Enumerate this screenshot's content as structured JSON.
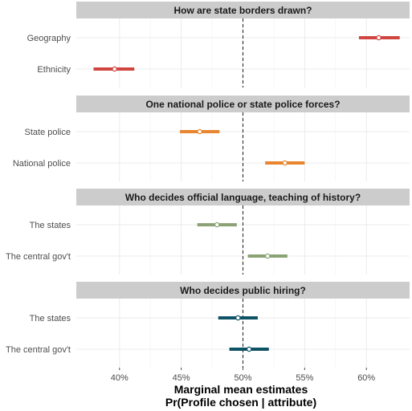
{
  "chart_data": {
    "type": "dot-whisker",
    "xlabel_line1": "Marginal mean estimates",
    "xlabel_line2": "Pr(Profile chosen | attribute)",
    "xlim": [
      0.365,
      0.635
    ],
    "x_ticks": [
      0.4,
      0.45,
      0.5,
      0.55,
      0.6
    ],
    "x_tick_labels": [
      "40%",
      "45%",
      "50%",
      "55%",
      "60%"
    ],
    "reference_line": 0.5,
    "grid": true,
    "panels": [
      {
        "title": "How are state borders drawn?",
        "color": "#d0453f",
        "rows": [
          {
            "label": "Geography",
            "estimate": 0.61,
            "lower": 0.594,
            "upper": 0.627
          },
          {
            "label": "Ethnicity",
            "estimate": 0.396,
            "lower": 0.379,
            "upper": 0.412
          }
        ]
      },
      {
        "title": "One national police or state police forces?",
        "color": "#e8852e",
        "rows": [
          {
            "label": "State police",
            "estimate": 0.465,
            "lower": 0.449,
            "upper": 0.481
          },
          {
            "label": "National police",
            "estimate": 0.534,
            "lower": 0.518,
            "upper": 0.55
          }
        ]
      },
      {
        "title": "Who decides official language, teaching of history?",
        "color": "#8aa274",
        "rows": [
          {
            "label": "The states",
            "estimate": 0.479,
            "lower": 0.463,
            "upper": 0.495
          },
          {
            "label": "The central gov't",
            "estimate": 0.52,
            "lower": 0.504,
            "upper": 0.536
          }
        ]
      },
      {
        "title": "Who decides public hiring?",
        "color": "#0e5266",
        "rows": [
          {
            "label": "The states",
            "estimate": 0.496,
            "lower": 0.48,
            "upper": 0.512
          },
          {
            "label": "The central gov't",
            "estimate": 0.505,
            "lower": 0.489,
            "upper": 0.521
          }
        ]
      }
    ]
  }
}
